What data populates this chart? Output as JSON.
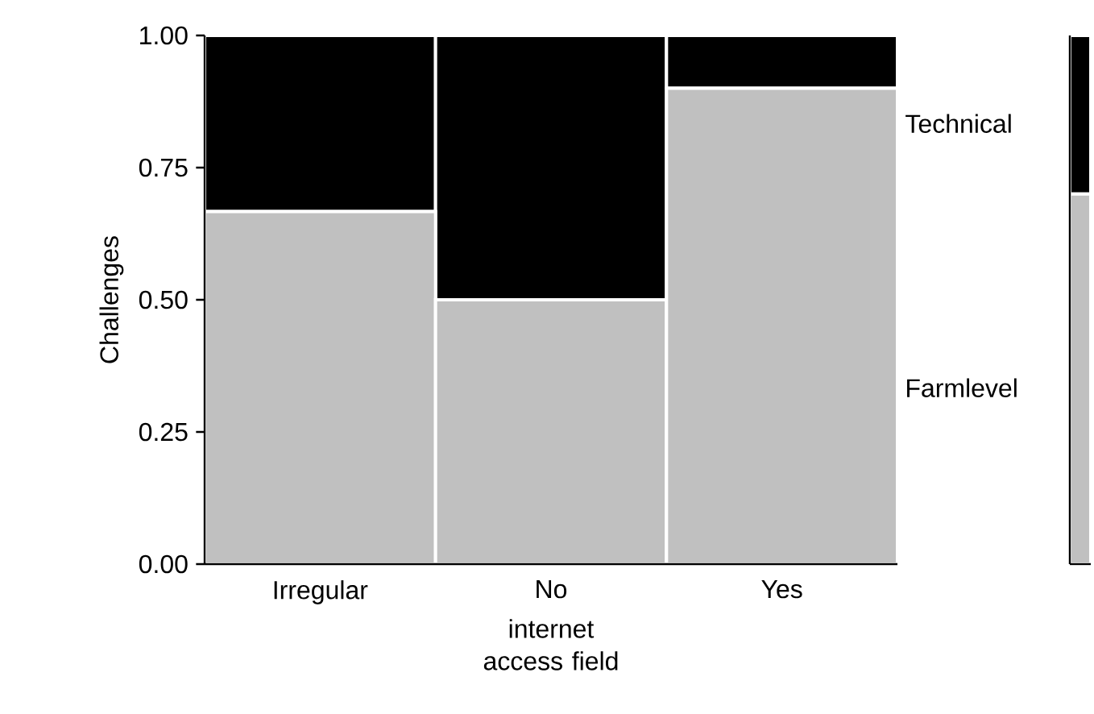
{
  "chart_data": [
    {
      "type": "bar",
      "stacked": true,
      "xlabel": "internet access field",
      "ylabel": "Challenges",
      "categories": [
        "Irregular",
        "No",
        "Yes"
      ],
      "series": [
        {
          "name": "Farmlevel",
          "color": "#c0c0c0",
          "values": [
            0.667,
            0.5,
            0.9
          ]
        },
        {
          "name": "Technical",
          "color": "#000000",
          "values": [
            0.333,
            0.5,
            0.1
          ]
        }
      ],
      "ylim": [
        0,
        1
      ],
      "yticks": [
        {
          "value": 0,
          "label": "0.00"
        },
        {
          "value": 0.25,
          "label": "0.25"
        },
        {
          "value": 0.5,
          "label": "0.50"
        },
        {
          "value": 0.75,
          "label": "0.75"
        },
        {
          "value": 1,
          "label": "1.00"
        }
      ]
    },
    {
      "type": "bar",
      "stacked": true,
      "categories": [
        null
      ],
      "series": [
        {
          "color": "#c0c0c0",
          "values": [
            0.7
          ]
        },
        {
          "color": "#000000",
          "values": [
            0.3
          ]
        }
      ],
      "ylim": [
        0,
        1
      ]
    }
  ]
}
